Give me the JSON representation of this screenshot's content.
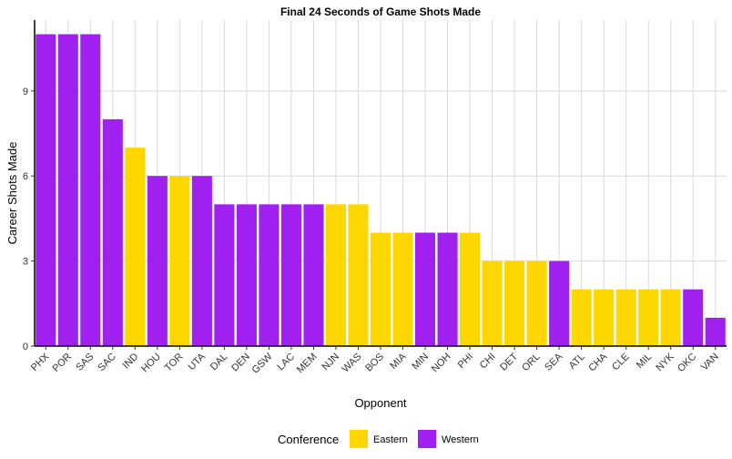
{
  "chart_data": {
    "type": "bar",
    "title": "Final 24 Seconds of Game Shots Made",
    "xlabel": "Opponent",
    "ylabel": "Career Shots Made",
    "ylim": [
      0,
      11.5
    ],
    "yticks": [
      0,
      3,
      6,
      9
    ],
    "grid": true,
    "legend": {
      "title": "Conference",
      "position": "bottom",
      "entries": [
        {
          "name": "Eastern",
          "color": "#FFD700"
        },
        {
          "name": "Western",
          "color": "#A020F0"
        }
      ]
    },
    "categories": [
      "PHX",
      "POR",
      "SAS",
      "SAC",
      "IND",
      "HOU",
      "TOR",
      "UTA",
      "DAL",
      "DEN",
      "GSW",
      "LAC",
      "MEM",
      "NJN",
      "WAS",
      "BOS",
      "MIA",
      "MIN",
      "NOH",
      "PHI",
      "CHI",
      "DET",
      "ORL",
      "SEA",
      "ATL",
      "CHA",
      "CLE",
      "MIL",
      "NYK",
      "OKC",
      "VAN"
    ],
    "values": [
      11,
      11,
      11,
      8,
      7,
      6,
      6,
      6,
      5,
      5,
      5,
      5,
      5,
      5,
      5,
      4,
      4,
      4,
      4,
      4,
      3,
      3,
      3,
      3,
      2,
      2,
      2,
      2,
      2,
      2,
      1
    ],
    "conference": [
      "Western",
      "Western",
      "Western",
      "Western",
      "Eastern",
      "Western",
      "Eastern",
      "Western",
      "Western",
      "Western",
      "Western",
      "Western",
      "Western",
      "Eastern",
      "Eastern",
      "Eastern",
      "Eastern",
      "Western",
      "Western",
      "Eastern",
      "Eastern",
      "Eastern",
      "Eastern",
      "Western",
      "Eastern",
      "Eastern",
      "Eastern",
      "Eastern",
      "Eastern",
      "Western",
      "Western"
    ]
  }
}
